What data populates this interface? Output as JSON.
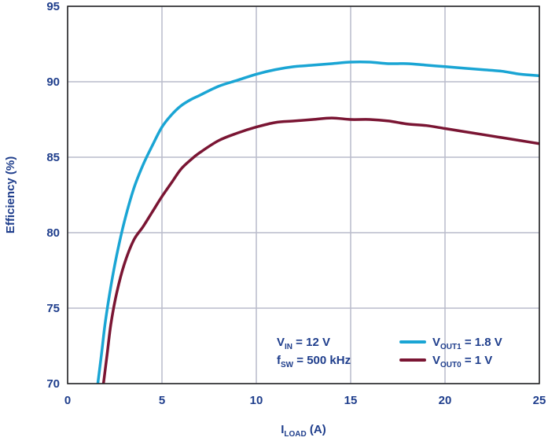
{
  "chart_data": {
    "type": "line",
    "xlabel": {
      "main": "I",
      "sub": "LOAD",
      "suffix": " (A)"
    },
    "ylabel": "Efficiency (%)",
    "xlim": [
      0,
      25
    ],
    "ylim": [
      70,
      95
    ],
    "xticks": [
      0,
      5,
      10,
      15,
      20,
      25
    ],
    "yticks": [
      70,
      75,
      80,
      85,
      90,
      95
    ],
    "grid": true,
    "conditions": [
      {
        "main": "V",
        "sub": "IN",
        "suffix": " = 12 V"
      },
      {
        "main": "f",
        "sub": "SW",
        "suffix": " = 500 kHz"
      }
    ],
    "legend_position": "bottom-right",
    "series": [
      {
        "name": {
          "main": "V",
          "sub": "OUT1",
          "suffix": " = 1.8 V"
        },
        "color": "#1aa5d4",
        "x": [
          1.6,
          1.8,
          2.0,
          2.3,
          2.6,
          3.0,
          3.5,
          4.0,
          4.5,
          5.0,
          5.5,
          6.0,
          6.5,
          7.0,
          8.0,
          9.0,
          10.0,
          11.0,
          12.0,
          13.0,
          14.0,
          15.0,
          16.0,
          17.0,
          18.0,
          19.0,
          20.0,
          21.0,
          22.0,
          23.0,
          24.0,
          25.0
        ],
        "y": [
          70.0,
          72.0,
          74.1,
          76.5,
          78.5,
          80.7,
          82.9,
          84.5,
          85.8,
          87.0,
          87.8,
          88.4,
          88.8,
          89.1,
          89.7,
          90.1,
          90.5,
          90.8,
          91.0,
          91.1,
          91.2,
          91.3,
          91.3,
          91.2,
          91.2,
          91.1,
          91.0,
          90.9,
          90.8,
          90.7,
          90.5,
          90.4
        ]
      },
      {
        "name": {
          "main": "V",
          "sub": "OUT0",
          "suffix": " = 1 V"
        },
        "color": "#7a1533",
        "x": [
          1.9,
          2.1,
          2.3,
          2.6,
          3.0,
          3.5,
          4.0,
          4.5,
          5.0,
          5.5,
          6.0,
          6.5,
          7.0,
          8.0,
          9.0,
          10.0,
          11.0,
          12.0,
          13.0,
          14.0,
          15.0,
          16.0,
          17.0,
          18.0,
          19.0,
          20.0,
          21.0,
          22.0,
          23.0,
          24.0,
          25.0
        ],
        "y": [
          70.0,
          72.0,
          74.0,
          76.0,
          77.9,
          79.5,
          80.4,
          81.4,
          82.4,
          83.3,
          84.2,
          84.8,
          85.3,
          86.1,
          86.6,
          87.0,
          87.3,
          87.4,
          87.5,
          87.6,
          87.5,
          87.5,
          87.4,
          87.2,
          87.1,
          86.9,
          86.7,
          86.5,
          86.3,
          86.1,
          85.9
        ]
      }
    ]
  }
}
